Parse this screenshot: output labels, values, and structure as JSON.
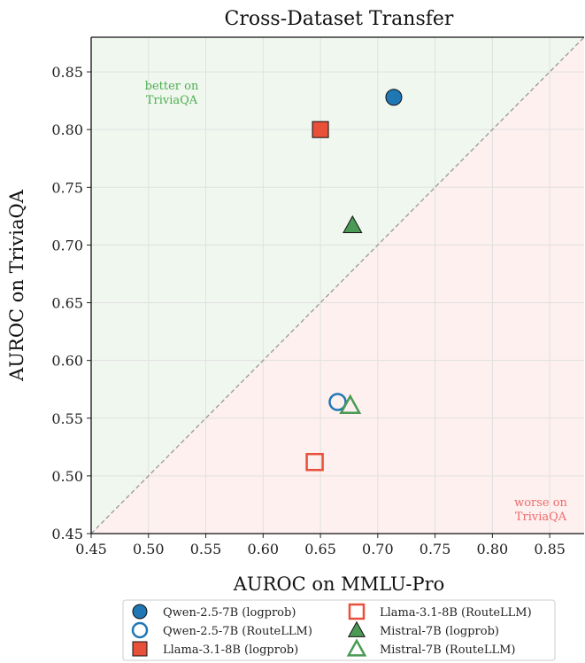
{
  "chart_data": {
    "type": "scatter",
    "title": "Cross-Dataset Transfer",
    "xlabel": "AUROC on MMLU-Pro",
    "ylabel": "AUROC on TriviaQA",
    "xlim": [
      0.45,
      0.88
    ],
    "ylim": [
      0.45,
      0.88
    ],
    "xticks": [
      "0.45",
      "0.50",
      "0.55",
      "0.60",
      "0.65",
      "0.70",
      "0.75",
      "0.80",
      "0.85"
    ],
    "yticks": [
      "0.45",
      "0.50",
      "0.55",
      "0.60",
      "0.65",
      "0.70",
      "0.75",
      "0.80",
      "0.85"
    ],
    "grid": true,
    "diagonal": "y = x (dashed gray)",
    "regions": {
      "upper": {
        "label_line1": "better on",
        "label_line2": "TriviaQA",
        "color": "#4caf50",
        "fill": "#f0f7ef"
      },
      "lower": {
        "label_line1": "worse on",
        "label_line2": "TriviaQA",
        "color": "#f06a6a",
        "fill": "#fdf0ef"
      }
    },
    "legend_position": "bottom",
    "series": [
      {
        "name": "Qwen-2.5-7B (logprob)",
        "marker": "circle",
        "filled": true,
        "color": "#1f77b4",
        "x": 0.714,
        "y": 0.828
      },
      {
        "name": "Qwen-2.5-7B (RouteLLM)",
        "marker": "circle",
        "filled": false,
        "color": "#1f77b4",
        "x": 0.665,
        "y": 0.564
      },
      {
        "name": "Llama-3.1-8B (logprob)",
        "marker": "square",
        "filled": true,
        "color": "#e8503a",
        "x": 0.65,
        "y": 0.8
      },
      {
        "name": "Llama-3.1-8B (RouteLLM)",
        "marker": "square",
        "filled": false,
        "color": "#e8503a",
        "x": 0.645,
        "y": 0.512
      },
      {
        "name": "Mistral-7B (logprob)",
        "marker": "triangle",
        "filled": true,
        "color": "#4a9a55",
        "x": 0.678,
        "y": 0.717
      },
      {
        "name": "Mistral-7B (RouteLLM)",
        "marker": "triangle",
        "filled": false,
        "color": "#4a9a55",
        "x": 0.676,
        "y": 0.561
      }
    ]
  }
}
